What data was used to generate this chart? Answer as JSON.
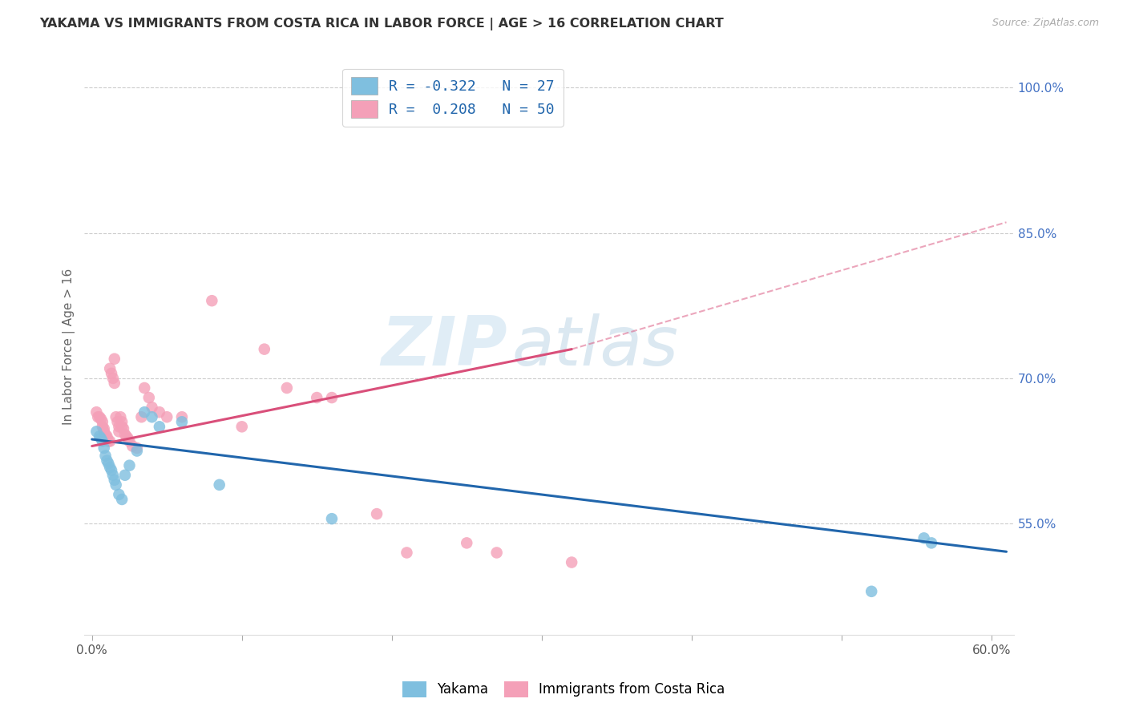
{
  "title": "YAKAMA VS IMMIGRANTS FROM COSTA RICA IN LABOR FORCE | AGE > 16 CORRELATION CHART",
  "source": "Source: ZipAtlas.com",
  "ylabel": "In Labor Force | Age > 16",
  "xlim": [
    -0.005,
    0.615
  ],
  "ylim": [
    0.435,
    1.03
  ],
  "blue_color": "#7fbfdf",
  "pink_color": "#f4a0b8",
  "blue_line_color": "#2166ac",
  "pink_line_color": "#d94f7a",
  "watermark_zip": "ZIP",
  "watermark_atlas": "atlas",
  "yakama_x": [
    0.003,
    0.005,
    0.006,
    0.007,
    0.008,
    0.009,
    0.01,
    0.011,
    0.012,
    0.013,
    0.014,
    0.015,
    0.016,
    0.018,
    0.02,
    0.022,
    0.025,
    0.03,
    0.035,
    0.04,
    0.045,
    0.06,
    0.085,
    0.16,
    0.52,
    0.555,
    0.56
  ],
  "yakama_y": [
    0.645,
    0.64,
    0.638,
    0.635,
    0.628,
    0.62,
    0.615,
    0.612,
    0.608,
    0.605,
    0.6,
    0.595,
    0.59,
    0.58,
    0.575,
    0.6,
    0.61,
    0.625,
    0.665,
    0.66,
    0.65,
    0.655,
    0.59,
    0.555,
    0.48,
    0.535,
    0.53
  ],
  "costa_rica_x": [
    0.003,
    0.004,
    0.005,
    0.006,
    0.007,
    0.007,
    0.008,
    0.008,
    0.009,
    0.01,
    0.01,
    0.011,
    0.012,
    0.012,
    0.013,
    0.014,
    0.015,
    0.015,
    0.016,
    0.017,
    0.018,
    0.018,
    0.019,
    0.02,
    0.02,
    0.021,
    0.022,
    0.023,
    0.024,
    0.025,
    0.027,
    0.03,
    0.033,
    0.035,
    0.038,
    0.04,
    0.045,
    0.05,
    0.06,
    0.08,
    0.1,
    0.115,
    0.13,
    0.15,
    0.16,
    0.19,
    0.21,
    0.25,
    0.27,
    0.32
  ],
  "costa_rica_y": [
    0.665,
    0.66,
    0.66,
    0.658,
    0.655,
    0.65,
    0.648,
    0.645,
    0.642,
    0.64,
    0.638,
    0.635,
    0.635,
    0.71,
    0.705,
    0.7,
    0.695,
    0.72,
    0.66,
    0.655,
    0.65,
    0.645,
    0.66,
    0.655,
    0.65,
    0.648,
    0.642,
    0.64,
    0.638,
    0.635,
    0.63,
    0.628,
    0.66,
    0.69,
    0.68,
    0.67,
    0.665,
    0.66,
    0.66,
    0.78,
    0.65,
    0.73,
    0.69,
    0.68,
    0.68,
    0.56,
    0.52,
    0.53,
    0.52,
    0.51
  ],
  "blue_line_x0": 0.0,
  "blue_line_y0": 0.637,
  "blue_line_x1": 0.61,
  "blue_line_y1": 0.521,
  "pink_line_solid_x0": 0.0,
  "pink_line_solid_y0": 0.63,
  "pink_line_solid_x1": 0.32,
  "pink_line_solid_y1": 0.73,
  "pink_line_dash_x0": 0.32,
  "pink_line_dash_y0": 0.73,
  "pink_line_dash_x1": 0.61,
  "pink_line_dash_y1": 0.861
}
